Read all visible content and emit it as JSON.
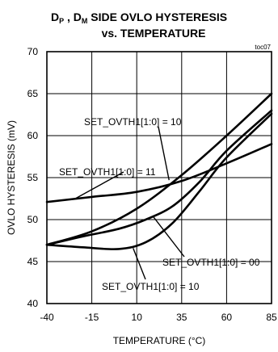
{
  "chart_data": {
    "type": "line",
    "title_line1": {
      "a": "D",
      "a_sub": "P",
      "b": " , D",
      "b_sub": "M",
      "c": "  SIDE OVLO HYSTERESIS"
    },
    "title_line2": "vs. TEMPERATURE",
    "figure_tag": "toc07",
    "xlabel": "TEMPERATURE (°C)",
    "ylabel": "OVLO HYSTERESIS (mV)",
    "xlim": [
      -40,
      85
    ],
    "ylim": [
      40,
      70
    ],
    "x_ticks": [
      "-40",
      "-15",
      "10",
      "35",
      "60",
      "85"
    ],
    "y_ticks": [
      "40",
      "45",
      "50",
      "55",
      "60",
      "65",
      "70"
    ],
    "grid": true,
    "series": [
      {
        "id": "flat",
        "points": [
          [
            -40,
            52.1
          ],
          [
            -15,
            52.7
          ],
          [
            10,
            53.3
          ],
          [
            35,
            54.6
          ],
          [
            60,
            56.7
          ],
          [
            85,
            59.0
          ]
        ]
      },
      {
        "id": "straight",
        "points": [
          [
            -40,
            47.0
          ],
          [
            -15,
            48.6
          ],
          [
            10,
            51.3
          ],
          [
            35,
            55.3
          ],
          [
            60,
            60.0
          ],
          [
            85,
            65.0
          ]
        ]
      },
      {
        "id": "middle",
        "points": [
          [
            -40,
            47.0
          ],
          [
            -20,
            48.0
          ],
          [
            0,
            48.9
          ],
          [
            15,
            50.0
          ],
          [
            30,
            51.6
          ],
          [
            45,
            54.5
          ],
          [
            60,
            58.2
          ],
          [
            85,
            63.0
          ]
        ]
      },
      {
        "id": "lowest",
        "points": [
          [
            -40,
            47.0
          ],
          [
            -20,
            46.7
          ],
          [
            0,
            46.5
          ],
          [
            15,
            47.3
          ],
          [
            30,
            49.6
          ],
          [
            45,
            53.4
          ],
          [
            60,
            57.4
          ],
          [
            85,
            62.6
          ]
        ]
      }
    ],
    "annotations": [
      {
        "text": "SET_OVTH1[1:0] = 10",
        "target": [
          28,
          54.7
        ]
      },
      {
        "text": "SET_OVTH1[1:0] = 11",
        "target": [
          -25,
          52.4
        ]
      },
      {
        "text": "SET_OVTH1[1:0] = 00",
        "target": [
          19,
          50.4
        ]
      },
      {
        "text": "SET_OVTH1[1:0] = 10",
        "target": [
          8,
          46.6
        ]
      }
    ]
  }
}
